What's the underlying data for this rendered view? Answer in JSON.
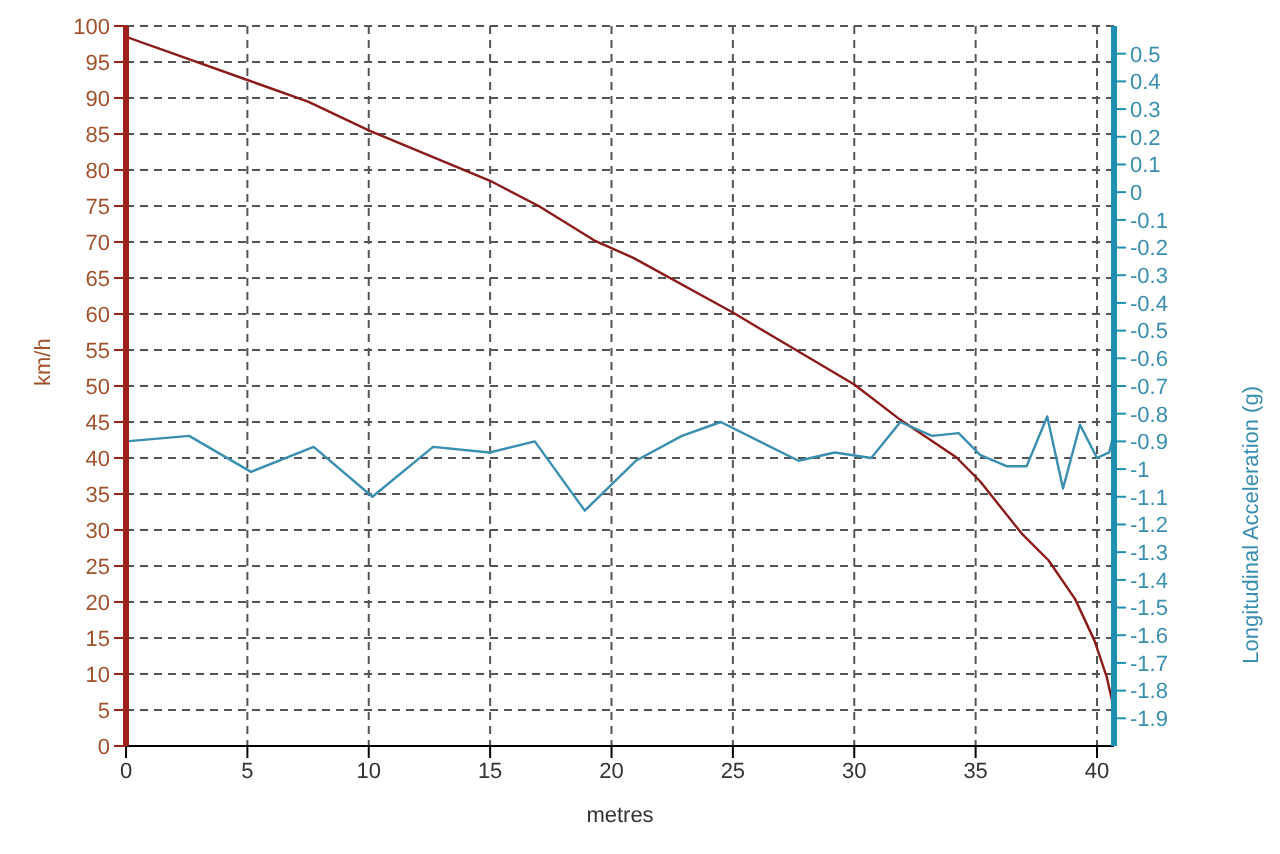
{
  "chart_data": {
    "type": "line",
    "xlabel": "metres",
    "ylabel": "km/h",
    "y2label": "Longitudinal Acceleration (g)",
    "xlim": [
      0,
      40.7
    ],
    "xticks": [
      0,
      5,
      10,
      15,
      20,
      25,
      30,
      35,
      40
    ],
    "ylim": [
      0,
      100
    ],
    "yticks": [
      0,
      5,
      10,
      15,
      20,
      25,
      30,
      35,
      40,
      45,
      50,
      55,
      60,
      65,
      70,
      75,
      80,
      85,
      90,
      95,
      100
    ],
    "y2lim": [
      -2,
      0.6
    ],
    "y2ticks": [
      0.5,
      0.4,
      0.3,
      0.2,
      0.1,
      0,
      -0.1,
      -0.2,
      -0.3,
      -0.4,
      -0.5,
      -0.6,
      -0.7,
      -0.8,
      -0.9,
      -1,
      -1.1,
      -1.2,
      -1.3,
      -1.4,
      -1.5,
      -1.6,
      -1.7,
      -1.8,
      -1.9
    ],
    "grid": true,
    "line_style": "solid",
    "series": [
      {
        "color": "#8b1a1a",
        "x": [
          0,
          2.5,
          5,
          7.5,
          10,
          12.5,
          15,
          17,
          19.3,
          20.9,
          25,
          30,
          31.9,
          34.2,
          35.2,
          36.9,
          38,
          39.1,
          39.9,
          40.4,
          40.7
        ],
        "values": [
          98.5,
          95.5,
          92.5,
          89.5,
          85.5,
          82,
          78.5,
          75,
          70.2,
          67.8,
          60.2,
          50.2,
          45.3,
          40.1,
          36.7,
          29.5,
          25.8,
          20.4,
          14.6,
          9.6,
          5.1
        ]
      },
      {
        "color": "#3a8fb0",
        "axis": "y2",
        "x": [
          0,
          2.6,
          5.15,
          7.73,
          10.15,
          12.65,
          14.98,
          16.84,
          18.9,
          21,
          22.9,
          24.5,
          27.7,
          29.2,
          30.7,
          31.9,
          33.2,
          34.3,
          35.2,
          36.3,
          37.1,
          37.95,
          38.6,
          39.3,
          40,
          40.5,
          40.7
        ],
        "values": [
          -0.9,
          -0.88,
          -1.01,
          -0.92,
          -1.1,
          -0.92,
          -0.94,
          -0.9,
          -1.15,
          -0.97,
          -0.88,
          -0.83,
          -0.97,
          -0.94,
          -0.96,
          -0.83,
          -0.88,
          -0.87,
          -0.95,
          -0.99,
          -0.99,
          -0.81,
          -1.07,
          -0.84,
          -0.96,
          -0.94,
          -0.87
        ]
      }
    ]
  }
}
